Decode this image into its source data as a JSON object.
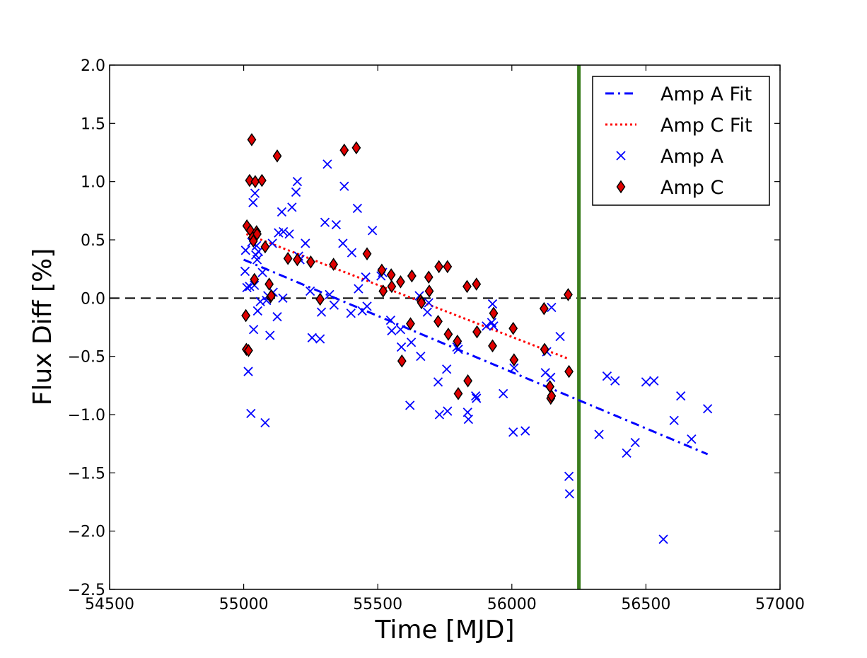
{
  "chart_data": {
    "type": "scatter",
    "title": "",
    "xlabel": "Time [MJD]",
    "ylabel": "Flux Diff [%]",
    "xlim": [
      54500,
      57000
    ],
    "ylim": [
      -2.5,
      2.0
    ],
    "xticks": [
      54500,
      55000,
      55500,
      56000,
      56500,
      57000
    ],
    "yticks": [
      -2.5,
      -2.0,
      -1.5,
      -1.0,
      -0.5,
      0.0,
      0.5,
      1.0,
      1.5,
      2.0
    ],
    "xtick_labels": [
      "54500",
      "55000",
      "55500",
      "56000",
      "56500",
      "57000"
    ],
    "ytick_labels": [
      "−2.5",
      "−2.0",
      "−1.5",
      "−1.0",
      "−0.5",
      "0.0",
      "0.5",
      "1.0",
      "1.5",
      "2.0"
    ],
    "grid": false,
    "legend_position": "top-right",
    "reference_hline": {
      "y": 0.0,
      "color": "#000000",
      "style": "dashed"
    },
    "reference_vline": {
      "x": 56250,
      "color": "#3a7d1e"
    },
    "series": [
      {
        "name": "Amp A Fit",
        "kind": "line",
        "style": "dashdot",
        "color": "#0000ff",
        "x": [
          55000,
          56730
        ],
        "y": [
          0.33,
          -1.34
        ]
      },
      {
        "name": "Amp C Fit",
        "kind": "line",
        "style": "dotted",
        "color": "#ff0000",
        "x": [
          55010,
          56210
        ],
        "y": [
          0.55,
          -0.52
        ]
      },
      {
        "name": "Amp A",
        "kind": "scatter",
        "marker": "x",
        "color": "#0000ff",
        "x": [
          55007,
          55005,
          55012,
          55017,
          55022,
          55027,
          55030,
          55035,
          55037,
          55040,
          55042,
          55045,
          55048,
          55050,
          55052,
          55055,
          55062,
          55070,
          55080,
          55085,
          55090,
          55098,
          55107,
          55110,
          55125,
          55130,
          55142,
          55146,
          55148,
          55170,
          55180,
          55195,
          55200,
          55205,
          55210,
          55230,
          55248,
          55255,
          55285,
          55290,
          55303,
          55312,
          55320,
          55337,
          55345,
          55370,
          55375,
          55400,
          55403,
          55424,
          55428,
          55442,
          55455,
          55460,
          55480,
          55512,
          55518,
          55548,
          55552,
          55585,
          55588,
          55620,
          55625,
          55655,
          55660,
          55685,
          55690,
          55725,
          55730,
          55757,
          55760,
          55795,
          55800,
          55835,
          55838,
          55865,
          55868,
          55905,
          55925,
          55928,
          55932,
          55968,
          56005,
          56008,
          56050,
          56125,
          56130,
          56145,
          56148,
          56180,
          56213,
          56215,
          56325,
          56355,
          56385,
          56428,
          56460,
          56500,
          56530,
          56565,
          56605,
          56630,
          56670,
          56730
        ],
        "y": [
          0.41,
          0.23,
          0.09,
          -0.63,
          0.1,
          -0.99,
          0.48,
          0.82,
          -0.27,
          0.11,
          0.9,
          0.37,
          0.45,
          0.33,
          -0.11,
          0.4,
          -0.03,
          0.22,
          -1.07,
          -0.02,
          0.02,
          -0.32,
          0.47,
          0.05,
          -0.16,
          0.56,
          0.74,
          0.0,
          0.57,
          0.55,
          0.78,
          0.91,
          1.0,
          0.36,
          0.33,
          0.47,
          0.06,
          -0.34,
          -0.35,
          -0.12,
          0.65,
          1.15,
          0.03,
          -0.06,
          0.63,
          0.47,
          0.96,
          -0.13,
          0.39,
          0.77,
          0.08,
          -0.11,
          0.18,
          -0.07,
          0.58,
          0.19,
          0.22,
          -0.19,
          -0.28,
          -0.27,
          -0.42,
          -0.92,
          -0.38,
          0.02,
          -0.5,
          -0.12,
          -0.04,
          -0.72,
          -1.0,
          -0.61,
          -0.97,
          -0.42,
          -0.44,
          -0.98,
          -1.04,
          -0.84,
          -0.86,
          -0.24,
          -0.21,
          -0.05,
          -0.24,
          -0.82,
          -1.15,
          -0.6,
          -1.14,
          -0.64,
          -0.46,
          -0.68,
          -0.08,
          -0.33,
          -1.53,
          -1.68,
          -1.17,
          -0.67,
          -0.71,
          -1.33,
          -1.24,
          -0.72,
          -0.71,
          -2.07,
          -1.05,
          -0.84,
          -1.21,
          -0.95
        ]
      },
      {
        "name": "Amp C",
        "kind": "scatter",
        "marker": "diamond",
        "color": "#e00000",
        "edge_color": "#000000",
        "x": [
          55008,
          55010,
          55012,
          55018,
          55022,
          55025,
          55030,
          55033,
          55036,
          55040,
          55043,
          55048,
          55050,
          55068,
          55080,
          55095,
          55100,
          55103,
          55125,
          55165,
          55200,
          55250,
          55285,
          55335,
          55375,
          55420,
          55460,
          55515,
          55520,
          55550,
          55552,
          55585,
          55590,
          55622,
          55627,
          55660,
          55663,
          55690,
          55692,
          55725,
          55728,
          55760,
          55763,
          55797,
          55800,
          55833,
          55836,
          55868,
          55870,
          55928,
          55932,
          56005,
          56008,
          56120,
          56122,
          56142,
          56145,
          56148,
          56210,
          56213
        ],
        "y": [
          -0.15,
          -0.44,
          0.62,
          -0.45,
          1.01,
          0.58,
          1.36,
          0.52,
          0.49,
          0.16,
          1.0,
          0.57,
          0.55,
          1.01,
          0.44,
          0.12,
          0.01,
          0.02,
          1.22,
          0.34,
          0.33,
          0.31,
          -0.01,
          0.29,
          1.27,
          1.29,
          0.38,
          0.24,
          0.06,
          0.2,
          0.1,
          0.14,
          -0.54,
          -0.22,
          0.19,
          -0.02,
          -0.04,
          0.18,
          0.06,
          -0.2,
          0.27,
          0.27,
          -0.31,
          -0.37,
          -0.82,
          0.1,
          -0.71,
          0.12,
          -0.29,
          -0.41,
          -0.13,
          -0.26,
          -0.53,
          -0.09,
          -0.44,
          -0.76,
          -0.86,
          -0.84,
          0.03,
          -0.63
        ]
      }
    ]
  }
}
